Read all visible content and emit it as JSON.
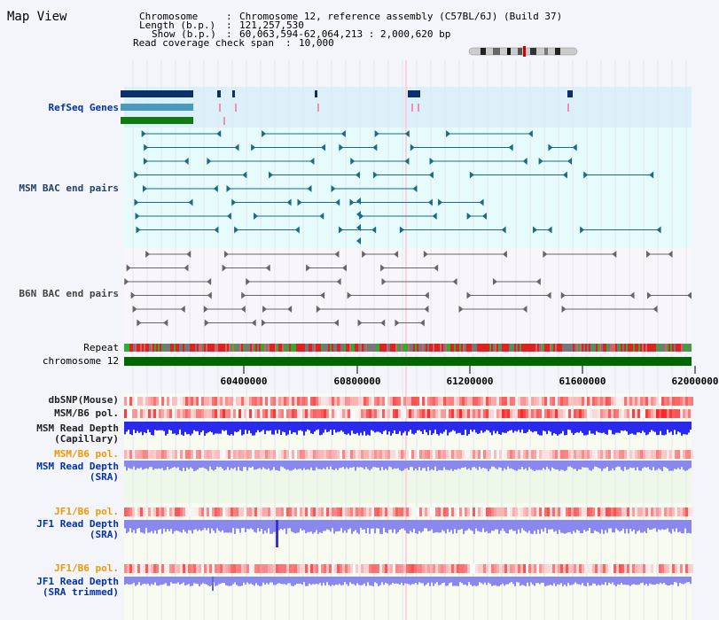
{
  "app": {
    "title": "Map View"
  },
  "header": {
    "rows": [
      {
        "key": "Chromosome",
        "value": "Chromosome 12, reference assembly (C57BL/6J) (Build 37)"
      },
      {
        "key": "Length (b.p.)",
        "value": "121,257,530"
      },
      {
        "key": "Show (b.p.)",
        "value": "60,063,594-62,064,213 : 2,000,620 bp"
      },
      {
        "key": "Read coverage check span",
        "value": "10,000"
      }
    ]
  },
  "tracks": {
    "refseq": "RefSeq Genes",
    "msm_bac": "MSM BAC end pairs",
    "b6n_bac": "B6N BAC end pairs",
    "repeat": "Repeat",
    "chromosome": "chromosome 12",
    "dbsnp": "dbSNP(Mouse)",
    "msm_b6_pol": "MSM/B6 pol.",
    "msm_depth_cap_1": "MSM Read Depth",
    "msm_depth_cap_2": "(Capillary)",
    "msm_b6_pol_sra": "MSM/B6 pol.",
    "msm_depth_sra_1": "MSM Read Depth",
    "msm_depth_sra_2": "(SRA)",
    "jf1_pol_1": "JF1/B6 pol.",
    "jf1_depth_1": "JF1 Read Depth",
    "jf1_depth_1b": "(SRA)",
    "jf1_pol_2": "JF1/B6 pol.",
    "jf1_depth_2": "JF1 Read Depth",
    "jf1_depth_2b": "(SRA trimmed)"
  },
  "axis": {
    "ticks": [
      "60400000",
      "60800000",
      "61200000",
      "61600000",
      "62000000"
    ]
  },
  "colors": {
    "refseq_bg": "#dcf0fa",
    "msm_bg": "#e6fbfb",
    "b6n_bg": "#f8f6fa",
    "chromosome_bar": "#006600",
    "depth_blue": "#2a2aee",
    "depth_light": "#8888ee",
    "pol_red": "#ee3333"
  }
}
